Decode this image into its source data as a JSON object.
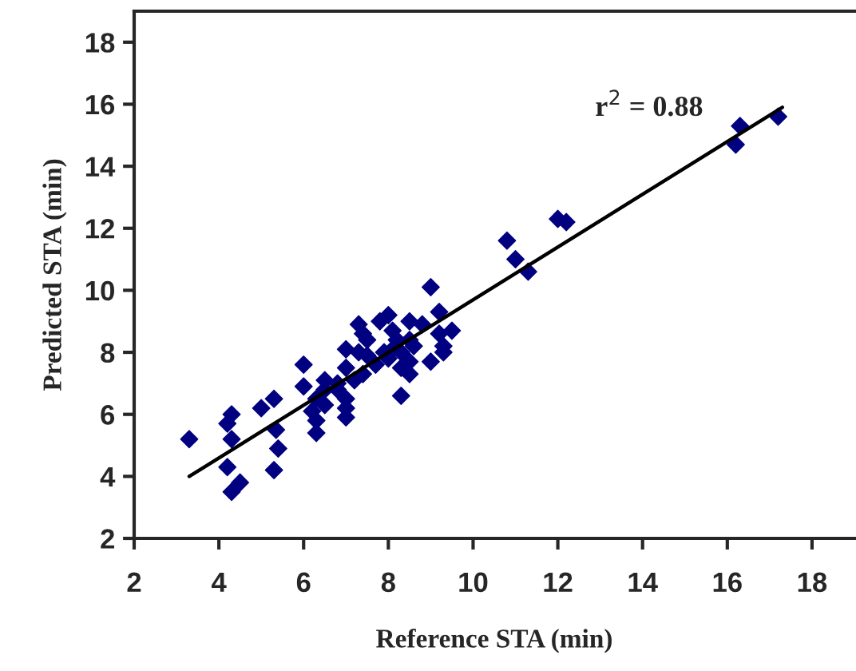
{
  "chart_data": {
    "type": "scatter",
    "xlabel": "Reference STA (min)",
    "ylabel": "Predicted STA (min)",
    "xlim": [
      2,
      19
    ],
    "ylim": [
      2,
      19
    ],
    "xticks": [
      2,
      4,
      6,
      8,
      10,
      12,
      14,
      16,
      18
    ],
    "yticks": [
      2,
      4,
      6,
      8,
      10,
      12,
      14,
      16,
      18
    ],
    "grid": false,
    "legend": false,
    "annotations": [
      "r$^{2}$ = 0.88"
    ],
    "series": [
      {
        "marker": "diamond",
        "color": "#000080",
        "x": [
          3.3,
          4.2,
          4.3,
          4.2,
          4.3,
          4.3,
          4.5,
          5.0,
          5.3,
          5.35,
          5.4,
          5.3,
          6.0,
          6.0,
          6.2,
          6.3,
          6.3,
          6.3,
          6.5,
          6.5,
          6.5,
          6.8,
          6.8,
          7.0,
          7.0,
          7.0,
          7.0,
          7.0,
          7.2,
          7.3,
          7.4,
          7.3,
          7.4,
          7.5,
          7.7,
          7.8,
          8.0,
          8.0,
          8.1,
          8.2,
          8.3,
          8.5,
          8.5,
          8.5,
          8.5,
          8.3,
          8.1,
          7.9,
          8.8,
          9.0,
          9.0,
          9.2,
          9.2,
          9.3,
          9.3,
          9.5,
          10.8,
          11.0,
          11.3,
          12.0,
          12.2,
          16.2,
          16.3,
          17.2,
          8.6,
          7.5,
          8.3
        ],
        "values": [
          5.2,
          5.7,
          6.0,
          4.3,
          5.2,
          3.5,
          3.8,
          6.2,
          6.5,
          5.5,
          4.9,
          4.2,
          7.6,
          6.9,
          6.1,
          6.5,
          5.8,
          5.4,
          7.1,
          6.8,
          6.3,
          7.0,
          6.8,
          8.1,
          7.5,
          6.5,
          6.2,
          5.9,
          7.1,
          8.9,
          8.6,
          8.0,
          7.3,
          7.9,
          7.6,
          9.0,
          9.2,
          7.8,
          8.7,
          8.4,
          7.5,
          9.0,
          8.4,
          7.7,
          7.3,
          6.6,
          8.1,
          8.0,
          8.9,
          10.1,
          7.7,
          9.3,
          8.6,
          8.2,
          8.0,
          8.7,
          11.6,
          11.0,
          10.6,
          12.3,
          12.2,
          14.7,
          15.3,
          15.6,
          8.2,
          8.4,
          8.0
        ]
      },
      {
        "type": "line",
        "color": "#000000",
        "line_style": "solid",
        "marker": "none",
        "x": [
          3.3,
          17.3
        ],
        "values": [
          4.0,
          15.9
        ]
      }
    ]
  }
}
